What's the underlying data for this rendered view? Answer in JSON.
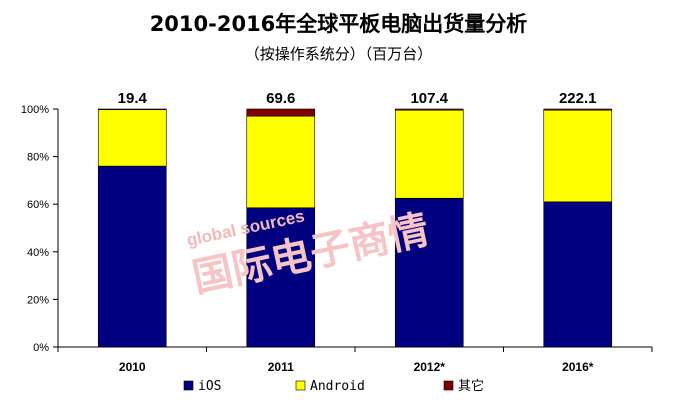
{
  "chart_data": {
    "type": "bar",
    "stacked": "percent",
    "title": "2010-2016年全球平板电脑出货量分析",
    "subtitle": "（按操作系统分）（百万台）",
    "categories": [
      "2010",
      "2011",
      "2012*",
      "2016*"
    ],
    "totals": [
      "19.4",
      "69.6",
      "107.4",
      "222.1"
    ],
    "ylim": [
      0,
      100
    ],
    "yticks": [
      "0%",
      "20%",
      "40%",
      "60%",
      "80%",
      "100%"
    ],
    "series": [
      {
        "name": "iOS",
        "color": "#000080",
        "values": [
          76,
          58.5,
          62.5,
          61
        ]
      },
      {
        "name": "Android",
        "color": "#ffff00",
        "values": [
          23.7,
          38.5,
          37,
          38.5
        ]
      },
      {
        "name": "其它",
        "color": "#800000",
        "values": [
          0.3,
          3,
          0.5,
          0.5
        ]
      }
    ],
    "legend_position": "bottom"
  },
  "watermark": {
    "brand": "global sources",
    "text": "国际电子商情"
  }
}
